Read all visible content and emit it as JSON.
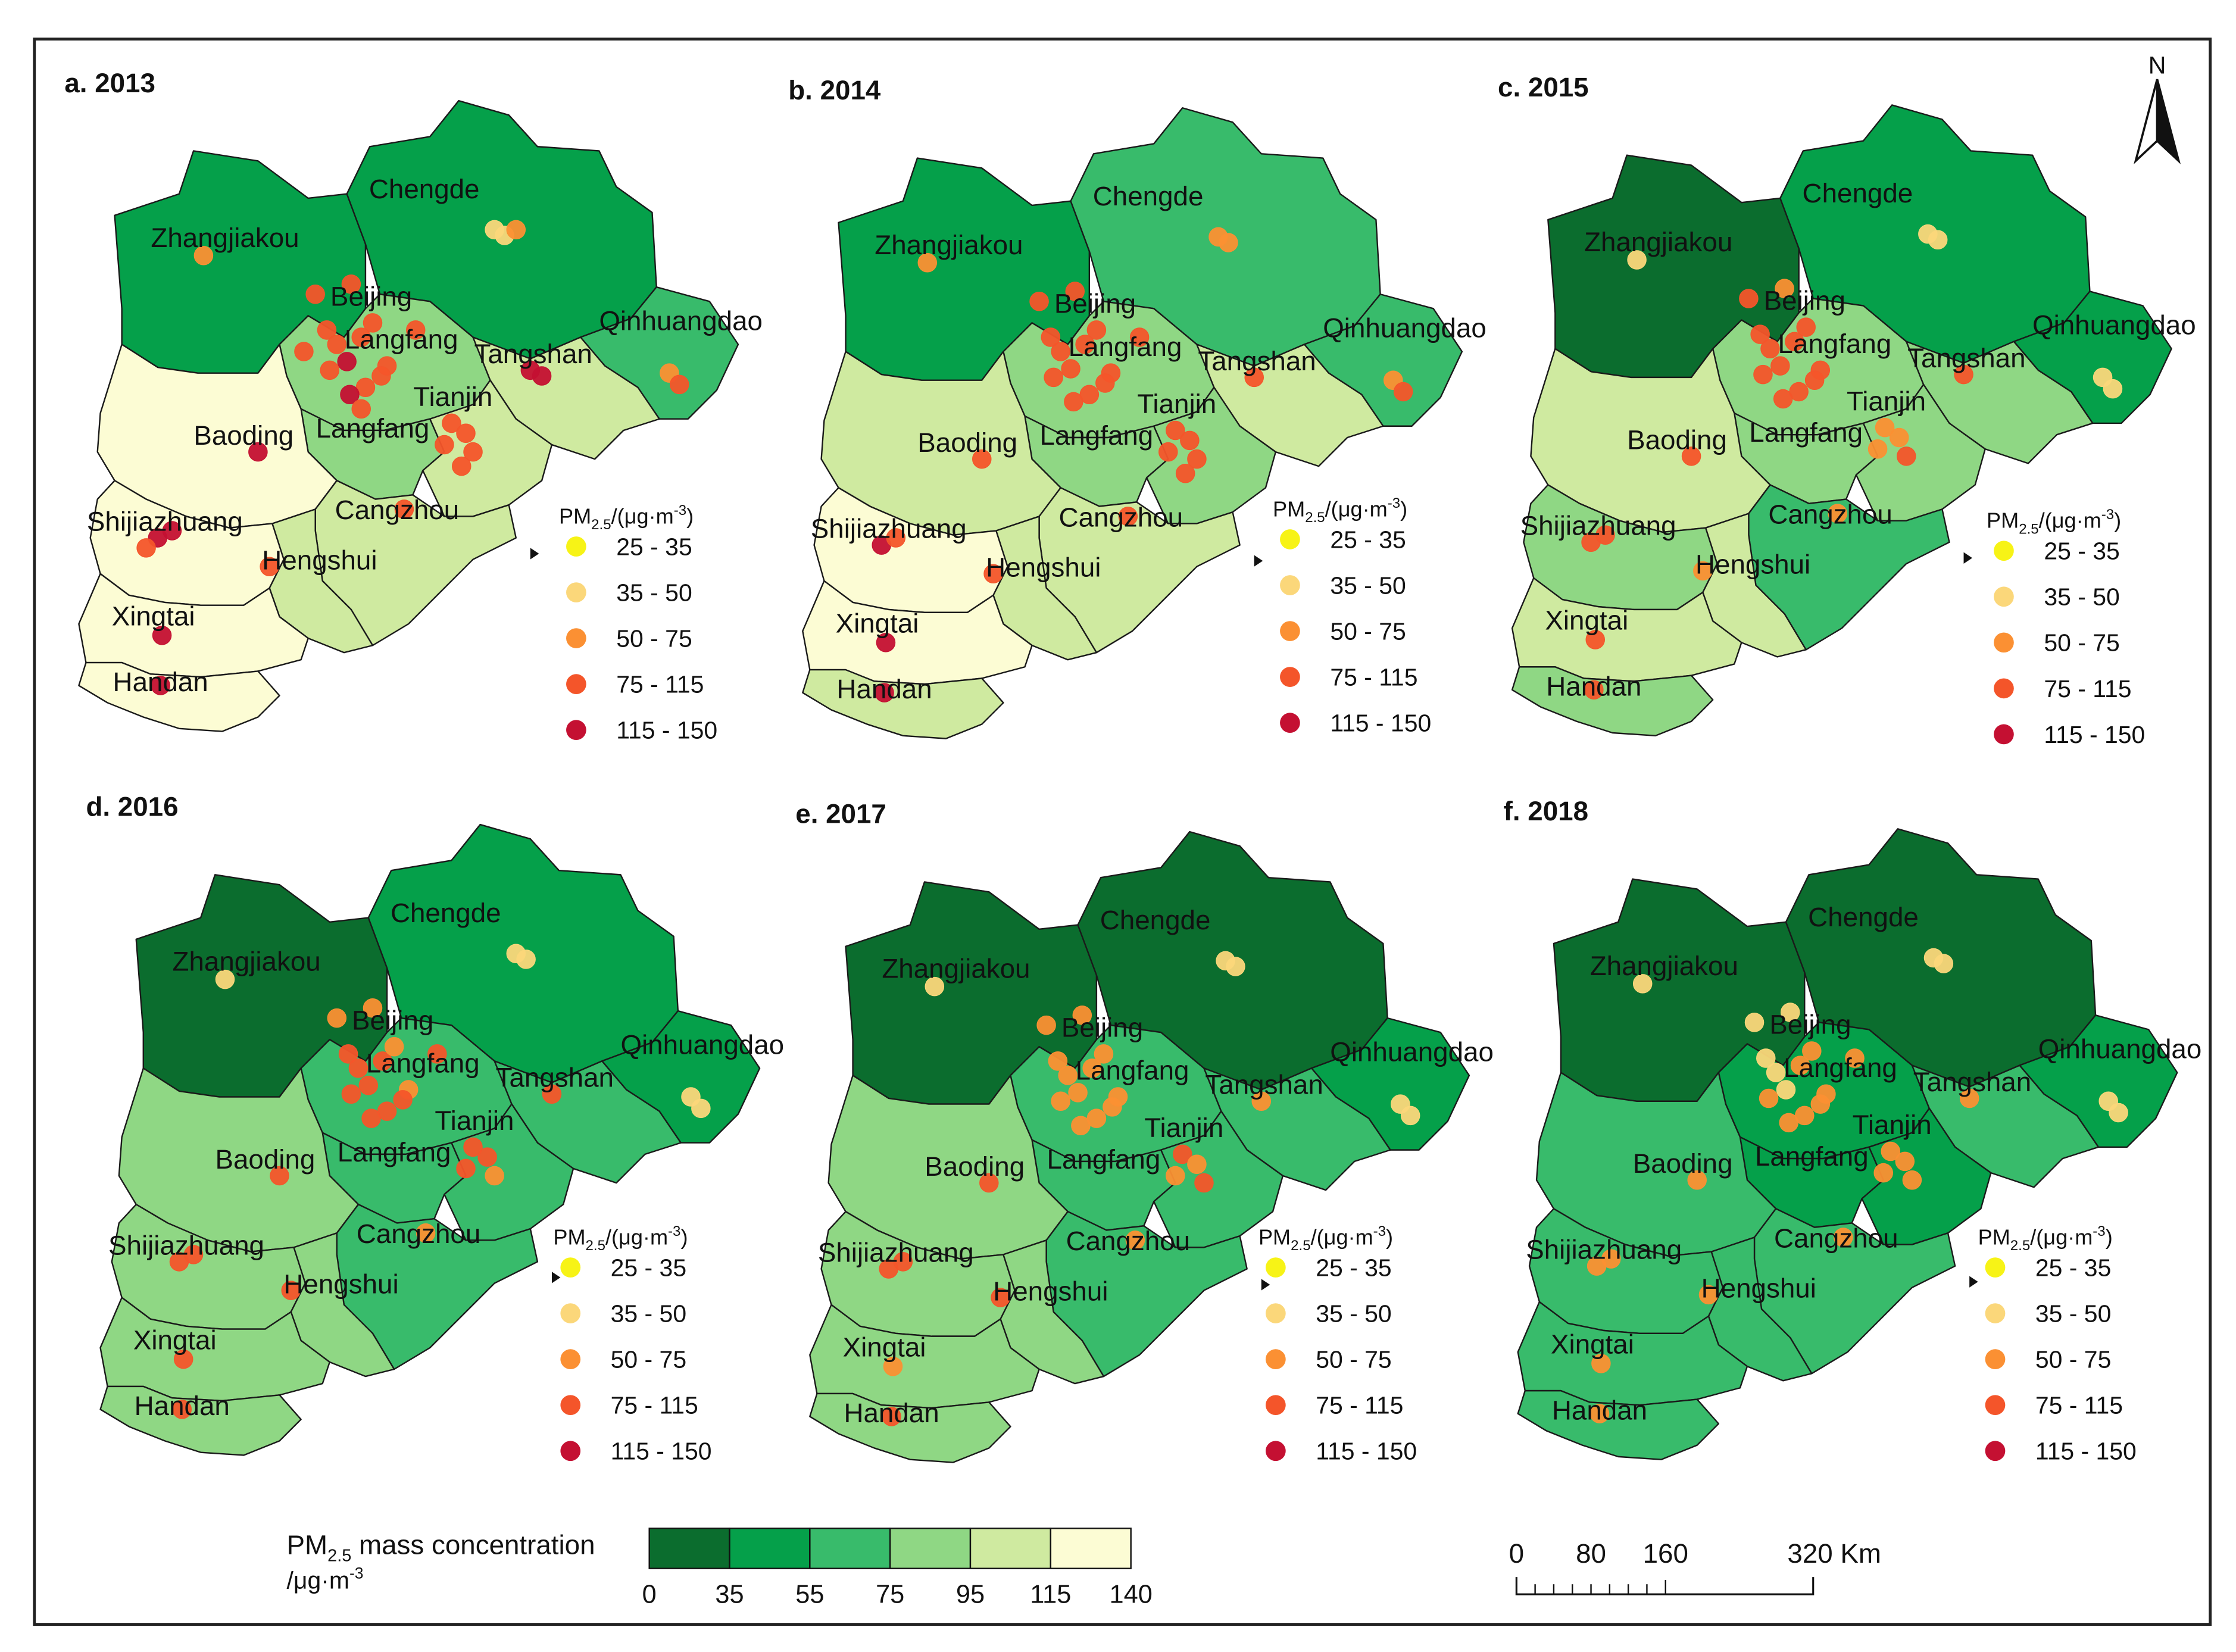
{
  "panels": [
    {
      "title": "a. 2013",
      "year": 2013,
      "classes": {
        "Zhangjiakou": 2,
        "Chengde": 2,
        "Beijing": 4,
        "Langfang": 4,
        "Qinhuangdao": 3,
        "Tangshan": 5,
        "Tianjin": 5,
        "Baoding": 6,
        "Cangzhou": 5,
        "Shijiazhuang": 6,
        "Hengshui": 5,
        "Xingtai": 6,
        "Handan": 6
      },
      "stations": {
        "Zhangjiakou": [
          3
        ],
        "Chengde": [
          2,
          2,
          3
        ],
        "Beijing": [
          4,
          4,
          4,
          4,
          5,
          4,
          4,
          4,
          4,
          4,
          4
        ],
        "Langfang": [
          4,
          4,
          5,
          4
        ],
        "Qinhuangdao": [
          3,
          4
        ],
        "Tangshan": [
          5,
          5
        ],
        "Tianjin": [
          4,
          4,
          4,
          4,
          4
        ],
        "Baoding": [
          5
        ],
        "Cangzhou": [
          4
        ],
        "Shijiazhuang": [
          5,
          5,
          4
        ],
        "Hengshui": [
          4
        ],
        "Xingtai": [
          5
        ],
        "Handan": [
          5
        ]
      }
    },
    {
      "title": "b. 2014",
      "year": 2014,
      "classes": {
        "Zhangjiakou": 2,
        "Chengde": 3,
        "Beijing": 4,
        "Langfang": 4,
        "Qinhuangdao": 3,
        "Tangshan": 5,
        "Tianjin": 4,
        "Baoding": 5,
        "Cangzhou": 5,
        "Shijiazhuang": 6,
        "Hengshui": 5,
        "Xingtai": 6,
        "Handan": 5
      },
      "stations": {
        "Zhangjiakou": [
          3
        ],
        "Chengde": [
          3,
          3
        ],
        "Beijing": [
          4,
          4,
          4,
          4,
          4,
          4,
          4,
          4,
          4,
          4
        ],
        "Langfang": [
          4,
          4,
          4
        ],
        "Qinhuangdao": [
          3,
          4
        ],
        "Tangshan": [
          4
        ],
        "Tianjin": [
          4,
          4,
          4,
          4,
          4
        ],
        "Baoding": [
          4
        ],
        "Cangzhou": [
          4
        ],
        "Shijiazhuang": [
          5,
          4
        ],
        "Hengshui": [
          4
        ],
        "Xingtai": [
          5
        ],
        "Handan": [
          5
        ]
      }
    },
    {
      "title": "c. 2015",
      "year": 2015,
      "classes": {
        "Zhangjiakou": 1,
        "Chengde": 2,
        "Beijing": 4,
        "Langfang": 4,
        "Qinhuangdao": 2,
        "Tangshan": 4,
        "Tianjin": 4,
        "Baoding": 5,
        "Cangzhou": 3,
        "Shijiazhuang": 4,
        "Hengshui": 5,
        "Xingtai": 5,
        "Handan": 4
      },
      "stations": {
        "Zhangjiakou": [
          2
        ],
        "Chengde": [
          2,
          2
        ],
        "Beijing": [
          4,
          3,
          4,
          4,
          4,
          4,
          4,
          4,
          4
        ],
        "Langfang": [
          4,
          4,
          4
        ],
        "Qinhuangdao": [
          2,
          2
        ],
        "Tangshan": [
          4
        ],
        "Tianjin": [
          3,
          3,
          3,
          4
        ],
        "Baoding": [
          4
        ],
        "Cangzhou": [
          3
        ],
        "Shijiazhuang": [
          4,
          4
        ],
        "Hengshui": [
          3
        ],
        "Xingtai": [
          4
        ],
        "Handan": [
          4
        ]
      }
    },
    {
      "title": "d. 2016",
      "year": 2016,
      "classes": {
        "Zhangjiakou": 1,
        "Chengde": 2,
        "Beijing": 3,
        "Langfang": 3,
        "Qinhuangdao": 2,
        "Tangshan": 3,
        "Tianjin": 3,
        "Baoding": 4,
        "Cangzhou": 3,
        "Shijiazhuang": 4,
        "Hengshui": 4,
        "Xingtai": 4,
        "Handan": 4
      },
      "stations": {
        "Zhangjiakou": [
          2
        ],
        "Chengde": [
          2,
          2
        ],
        "Beijing": [
          3,
          3,
          4,
          4,
          4,
          4,
          4,
          3,
          3,
          4
        ],
        "Langfang": [
          4,
          4,
          4
        ],
        "Qinhuangdao": [
          2,
          2
        ],
        "Tangshan": [
          4
        ],
        "Tianjin": [
          4,
          4,
          4,
          3
        ],
        "Baoding": [
          4
        ],
        "Cangzhou": [
          3
        ],
        "Shijiazhuang": [
          4,
          4
        ],
        "Hengshui": [
          4
        ],
        "Xingtai": [
          4
        ],
        "Handan": [
          4
        ]
      }
    },
    {
      "title": "e. 2017",
      "year": 2017,
      "classes": {
        "Zhangjiakou": 1,
        "Chengde": 1,
        "Beijing": 3,
        "Langfang": 3,
        "Qinhuangdao": 2,
        "Tangshan": 3,
        "Tianjin": 3,
        "Baoding": 4,
        "Cangzhou": 3,
        "Shijiazhuang": 4,
        "Hengshui": 4,
        "Xingtai": 4,
        "Handan": 4
      },
      "stations": {
        "Zhangjiakou": [
          2
        ],
        "Chengde": [
          2,
          2
        ],
        "Beijing": [
          3,
          3,
          3,
          3,
          3,
          3,
          3,
          3,
          3
        ],
        "Langfang": [
          3,
          3,
          3
        ],
        "Qinhuangdao": [
          2,
          2
        ],
        "Tangshan": [
          3
        ],
        "Tianjin": [
          4,
          3,
          3,
          4
        ],
        "Baoding": [
          4
        ],
        "Cangzhou": [
          3
        ],
        "Shijiazhuang": [
          4,
          4
        ],
        "Hengshui": [
          4
        ],
        "Xingtai": [
          3
        ],
        "Handan": [
          4
        ]
      }
    },
    {
      "title": "f. 2018",
      "year": 2018,
      "classes": {
        "Zhangjiakou": 1,
        "Chengde": 1,
        "Beijing": 2,
        "Langfang": 2,
        "Qinhuangdao": 2,
        "Tangshan": 3,
        "Tianjin": 2,
        "Baoding": 3,
        "Cangzhou": 3,
        "Shijiazhuang": 3,
        "Hengshui": 3,
        "Xingtai": 3,
        "Handan": 3
      },
      "stations": {
        "Zhangjiakou": [
          2
        ],
        "Chengde": [
          2,
          2
        ],
        "Beijing": [
          2,
          2,
          2,
          2,
          2,
          3,
          3,
          3,
          3,
          3
        ],
        "Langfang": [
          3,
          3,
          3
        ],
        "Qinhuangdao": [
          2,
          2
        ],
        "Tangshan": [
          3
        ],
        "Tianjin": [
          3,
          3,
          3,
          3
        ],
        "Baoding": [
          3
        ],
        "Cangzhou": [
          3
        ],
        "Shijiazhuang": [
          3,
          3
        ],
        "Hengshui": [
          3
        ],
        "Xingtai": [
          3
        ],
        "Handan": [
          3
        ]
      }
    }
  ],
  "cities": [
    "Zhangjiakou",
    "Chengde",
    "Beijing",
    "Langfang",
    "Qinhuangdao",
    "Tangshan",
    "Tianjin",
    "Baoding",
    "Cangzhou",
    "Shijiazhuang",
    "Hengshui",
    "Xingtai",
    "Handan"
  ],
  "extra_city_labels": [
    "Langfang"
  ],
  "point_legend": {
    "title_main": "PM",
    "title_sub": "2.5",
    "title_unit_base": "/(μg·m",
    "title_unit_sup": "-3",
    "title_unit_end": ")",
    "classes": [
      {
        "label": "25 - 35",
        "color": "#f7f316"
      },
      {
        "label": "35 - 50",
        "color": "#fbd77a"
      },
      {
        "label": "50 - 75",
        "color": "#fb9033"
      },
      {
        "label": "75 - 115",
        "color": "#f4552a"
      },
      {
        "label": "115 - 150",
        "color": "#c41032"
      }
    ]
  },
  "area_legend": {
    "title_main": "PM",
    "title_sub": "2.5",
    "title_rest": " mass concentration",
    "unit_base": "/μg·m",
    "unit_sup": "-3",
    "breaks": [
      "0",
      "35",
      "55",
      "75",
      "95",
      "115",
      "140"
    ],
    "colors": [
      "#0b6d2e",
      "#05a04a",
      "#38bb6b",
      "#8fd784",
      "#cfeaa0",
      "#fcfcd4"
    ]
  },
  "scale_bar": {
    "labels": [
      "0",
      "80",
      "160",
      "320 Km"
    ]
  },
  "north_arrow": {
    "label": "N"
  }
}
